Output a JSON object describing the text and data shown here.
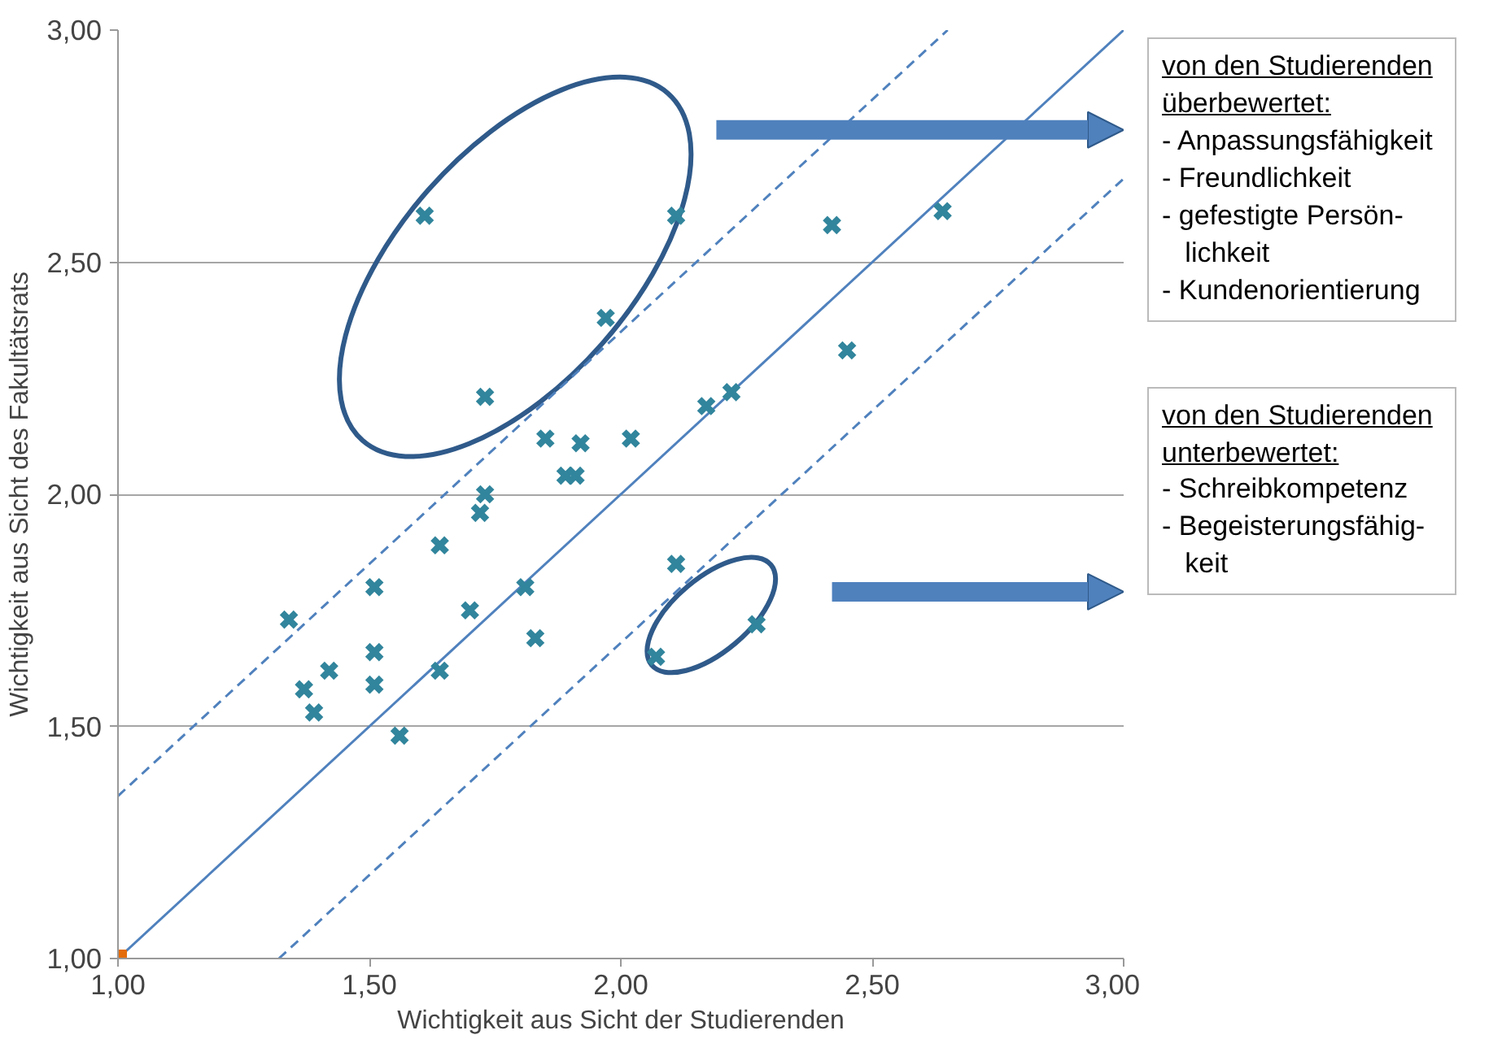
{
  "chart_data": {
    "type": "scatter",
    "xlabel": "Wichtigkeit aus Sicht der Studierenden",
    "ylabel": "Wichtigkeit aus Sicht des Fakultätsrats",
    "xlim": [
      1,
      3
    ],
    "ylim": [
      1,
      3
    ],
    "xticks": [
      {
        "value": 1,
        "label": "1,00"
      },
      {
        "value": 1.5,
        "label": "1,50"
      },
      {
        "value": 2,
        "label": "2,00"
      },
      {
        "value": 2.5,
        "label": "2,50"
      },
      {
        "value": 3,
        "label": "3,00"
      }
    ],
    "yticks": [
      {
        "value": 1,
        "label": "1,00"
      },
      {
        "value": 1.5,
        "label": "1,50"
      },
      {
        "value": 2,
        "label": "2,00"
      },
      {
        "value": 2.5,
        "label": "2,50"
      },
      {
        "value": 3,
        "label": "3,00"
      }
    ],
    "grid": "y",
    "marker": "cross",
    "series": [
      {
        "type": "line",
        "color": "#4f81bd",
        "line_style": "solid",
        "marker": "none",
        "x": [
          1,
          3
        ],
        "values": [
          1,
          3
        ]
      },
      {
        "type": "line",
        "color": "#4f81bd",
        "line_style": "dashed",
        "marker": "none",
        "x": [
          1,
          2.65
        ],
        "values": [
          1.35,
          3
        ]
      },
      {
        "type": "line",
        "color": "#4f81bd",
        "line_style": "dashed",
        "marker": "none",
        "x": [
          1.32,
          3
        ],
        "values": [
          1,
          2.68
        ]
      },
      {
        "color": "#31859c",
        "x": [
          1.61,
          2.11,
          2.42,
          2.64,
          1.97,
          2.45,
          1.73,
          1.85,
          1.92,
          2.02,
          2.17,
          2.22,
          1.89,
          1.91,
          1.73,
          1.72,
          1.64,
          1.34,
          1.51,
          1.81,
          1.7,
          1.51,
          1.37,
          1.42,
          1.39,
          1.51,
          1.64,
          1.56,
          1.83,
          2.11,
          2.07,
          2.27
        ],
        "values": [
          2.6,
          2.6,
          2.58,
          2.61,
          2.38,
          2.31,
          2.21,
          2.12,
          2.11,
          2.12,
          2.19,
          2.22,
          2.04,
          2.04,
          2.0,
          1.96,
          1.89,
          1.73,
          1.8,
          1.8,
          1.75,
          1.66,
          1.58,
          1.62,
          1.53,
          1.59,
          1.62,
          1.48,
          1.69,
          1.85,
          1.65,
          1.72
        ]
      },
      {
        "color": "#e46c0a",
        "marker": "square",
        "x": [
          1.0
        ],
        "values": [
          1.0
        ]
      }
    ],
    "annotations": [
      "von den Studierenden\nüberbewertet:",
      "- Anpassungsfähigkeit\n- Freundlichkeit\n- gefestigte Persön-\n   lichkeit\n- Kundenorientierung",
      "von den Studierenden\nunterbewertet:",
      "- Schreibkompetenz\n- Begeisterungsfähig-\n   keit"
    ]
  }
}
